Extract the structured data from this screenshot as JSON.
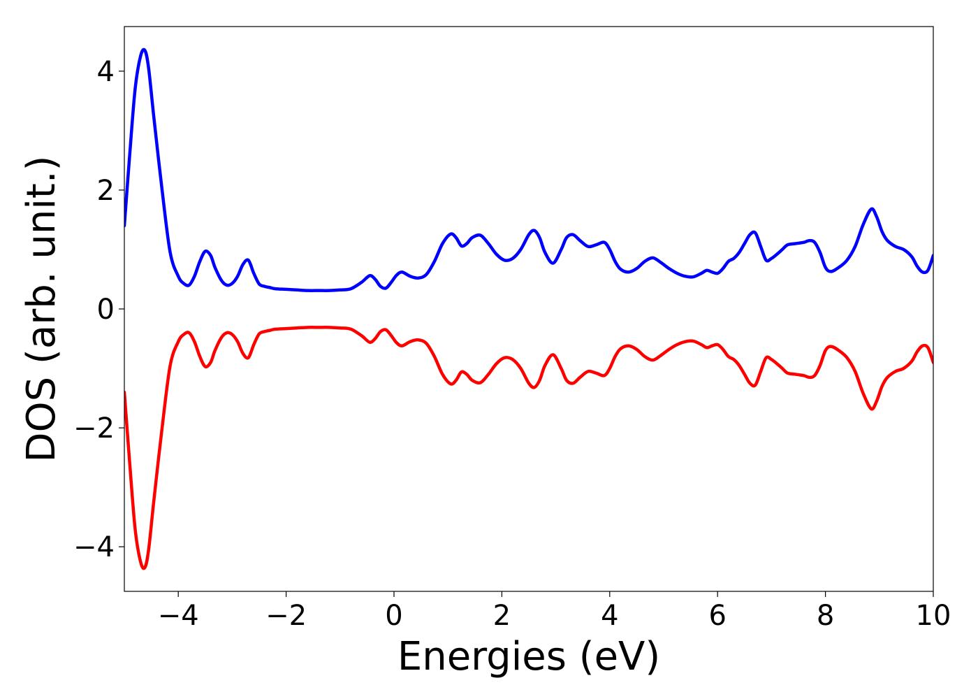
{
  "chart_data": {
    "type": "line",
    "title": "",
    "xlabel": "Energies (eV)",
    "ylabel": "DOS (arb. unit.)",
    "xlim": [
      -5,
      10
    ],
    "ylim": [
      -4.75,
      4.75
    ],
    "grid": false,
    "legend": "none",
    "x_ticks": [
      -4,
      -2,
      0,
      2,
      4,
      6,
      8,
      10
    ],
    "x_tick_labels": [
      "−4",
      "−2",
      "0",
      "2",
      "4",
      "6",
      "8",
      "10"
    ],
    "y_ticks": [
      -4,
      -2,
      0,
      2,
      4
    ],
    "y_tick_labels": [
      "−4",
      "−2",
      "0",
      "2",
      "4"
    ],
    "series": [
      {
        "color": "#0000ff",
        "x": [
          -5.0,
          -4.9,
          -4.8,
          -4.7,
          -4.62,
          -4.55,
          -4.45,
          -4.3,
          -4.15,
          -4.0,
          -3.9,
          -3.8,
          -3.7,
          -3.6,
          -3.5,
          -3.4,
          -3.32,
          -3.2,
          -3.1,
          -3.0,
          -2.9,
          -2.8,
          -2.7,
          -2.6,
          -2.5,
          -2.4,
          -2.3,
          -2.2,
          -2.0,
          -1.8,
          -1.6,
          -1.4,
          -1.2,
          -1.0,
          -0.8,
          -0.6,
          -0.45,
          -0.35,
          -0.25,
          -0.15,
          -0.05,
          0.05,
          0.15,
          0.3,
          0.45,
          0.6,
          0.75,
          0.9,
          1.05,
          1.15,
          1.25,
          1.35,
          1.45,
          1.6,
          1.75,
          1.9,
          2.05,
          2.2,
          2.35,
          2.5,
          2.6,
          2.7,
          2.8,
          2.95,
          3.1,
          3.2,
          3.32,
          3.45,
          3.6,
          3.75,
          3.9,
          4.0,
          4.1,
          4.2,
          4.35,
          4.5,
          4.65,
          4.8,
          4.95,
          5.1,
          5.25,
          5.4,
          5.55,
          5.7,
          5.8,
          5.9,
          6.0,
          6.1,
          6.2,
          6.3,
          6.4,
          6.5,
          6.6,
          6.7,
          6.8,
          6.9,
          7.0,
          7.1,
          7.2,
          7.3,
          7.45,
          7.6,
          7.7,
          7.8,
          7.9,
          8.0,
          8.1,
          8.25,
          8.4,
          8.55,
          8.7,
          8.85,
          8.95,
          9.05,
          9.15,
          9.3,
          9.45,
          9.6,
          9.7,
          9.8,
          9.9,
          10.0
        ],
        "values": [
          1.4,
          2.6,
          3.7,
          4.25,
          4.35,
          4.05,
          3.2,
          2.0,
          0.95,
          0.55,
          0.43,
          0.4,
          0.55,
          0.8,
          0.97,
          0.9,
          0.7,
          0.48,
          0.4,
          0.43,
          0.55,
          0.75,
          0.82,
          0.6,
          0.42,
          0.38,
          0.36,
          0.34,
          0.33,
          0.32,
          0.31,
          0.31,
          0.31,
          0.32,
          0.34,
          0.45,
          0.56,
          0.5,
          0.38,
          0.35,
          0.45,
          0.57,
          0.62,
          0.55,
          0.52,
          0.58,
          0.8,
          1.1,
          1.26,
          1.2,
          1.06,
          1.1,
          1.2,
          1.24,
          1.1,
          0.92,
          0.82,
          0.85,
          1.0,
          1.25,
          1.32,
          1.2,
          0.95,
          0.77,
          1.0,
          1.2,
          1.25,
          1.15,
          1.05,
          1.08,
          1.12,
          1.0,
          0.8,
          0.67,
          0.62,
          0.68,
          0.8,
          0.86,
          0.78,
          0.68,
          0.6,
          0.55,
          0.54,
          0.6,
          0.65,
          0.62,
          0.6,
          0.68,
          0.8,
          0.85,
          0.95,
          1.1,
          1.25,
          1.28,
          1.05,
          0.82,
          0.85,
          0.92,
          1.0,
          1.08,
          1.1,
          1.12,
          1.15,
          1.12,
          0.95,
          0.7,
          0.63,
          0.7,
          0.82,
          1.05,
          1.42,
          1.68,
          1.55,
          1.3,
          1.15,
          1.05,
          1.0,
          0.88,
          0.72,
          0.62,
          0.65,
          0.9
        ]
      },
      {
        "color": "#ff0000",
        "x": [
          -5.0,
          -4.9,
          -4.8,
          -4.7,
          -4.62,
          -4.55,
          -4.45,
          -4.3,
          -4.15,
          -4.0,
          -3.9,
          -3.8,
          -3.7,
          -3.6,
          -3.5,
          -3.4,
          -3.32,
          -3.2,
          -3.1,
          -3.0,
          -2.9,
          -2.8,
          -2.7,
          -2.6,
          -2.5,
          -2.4,
          -2.3,
          -2.2,
          -2.0,
          -1.8,
          -1.6,
          -1.4,
          -1.2,
          -1.0,
          -0.8,
          -0.6,
          -0.45,
          -0.35,
          -0.25,
          -0.15,
          -0.05,
          0.05,
          0.15,
          0.3,
          0.45,
          0.6,
          0.75,
          0.9,
          1.05,
          1.15,
          1.25,
          1.35,
          1.45,
          1.6,
          1.75,
          1.9,
          2.05,
          2.2,
          2.35,
          2.5,
          2.6,
          2.7,
          2.8,
          2.95,
          3.1,
          3.2,
          3.32,
          3.45,
          3.6,
          3.75,
          3.9,
          4.0,
          4.1,
          4.2,
          4.35,
          4.5,
          4.65,
          4.8,
          4.95,
          5.1,
          5.25,
          5.4,
          5.55,
          5.7,
          5.8,
          5.9,
          6.0,
          6.1,
          6.2,
          6.3,
          6.4,
          6.5,
          6.6,
          6.7,
          6.8,
          6.9,
          7.0,
          7.1,
          7.2,
          7.3,
          7.45,
          7.6,
          7.7,
          7.8,
          7.9,
          8.0,
          8.1,
          8.25,
          8.4,
          8.55,
          8.7,
          8.85,
          8.95,
          9.05,
          9.15,
          9.3,
          9.45,
          9.6,
          9.7,
          9.8,
          9.9,
          10.0
        ],
        "values": [
          -1.4,
          -2.6,
          -3.7,
          -4.25,
          -4.35,
          -4.05,
          -3.2,
          -2.0,
          -0.95,
          -0.55,
          -0.43,
          -0.4,
          -0.55,
          -0.8,
          -0.97,
          -0.9,
          -0.7,
          -0.48,
          -0.4,
          -0.43,
          -0.55,
          -0.75,
          -0.82,
          -0.6,
          -0.42,
          -0.38,
          -0.36,
          -0.34,
          -0.33,
          -0.32,
          -0.31,
          -0.31,
          -0.31,
          -0.32,
          -0.34,
          -0.45,
          -0.56,
          -0.5,
          -0.38,
          -0.35,
          -0.45,
          -0.57,
          -0.62,
          -0.55,
          -0.52,
          -0.58,
          -0.8,
          -1.1,
          -1.26,
          -1.2,
          -1.06,
          -1.1,
          -1.2,
          -1.24,
          -1.1,
          -0.92,
          -0.82,
          -0.85,
          -1.0,
          -1.25,
          -1.32,
          -1.2,
          -0.95,
          -0.77,
          -1.0,
          -1.2,
          -1.25,
          -1.15,
          -1.05,
          -1.08,
          -1.12,
          -1.0,
          -0.8,
          -0.67,
          -0.62,
          -0.68,
          -0.8,
          -0.86,
          -0.78,
          -0.68,
          -0.6,
          -0.55,
          -0.54,
          -0.6,
          -0.65,
          -0.62,
          -0.6,
          -0.68,
          -0.8,
          -0.85,
          -0.95,
          -1.1,
          -1.25,
          -1.28,
          -1.05,
          -0.82,
          -0.85,
          -0.92,
          -1.0,
          -1.08,
          -1.1,
          -1.12,
          -1.15,
          -1.12,
          -0.95,
          -0.7,
          -0.63,
          -0.7,
          -0.82,
          -1.05,
          -1.42,
          -1.68,
          -1.55,
          -1.3,
          -1.15,
          -1.05,
          -1.0,
          -0.88,
          -0.72,
          -0.62,
          -0.65,
          -0.9
        ]
      }
    ]
  }
}
